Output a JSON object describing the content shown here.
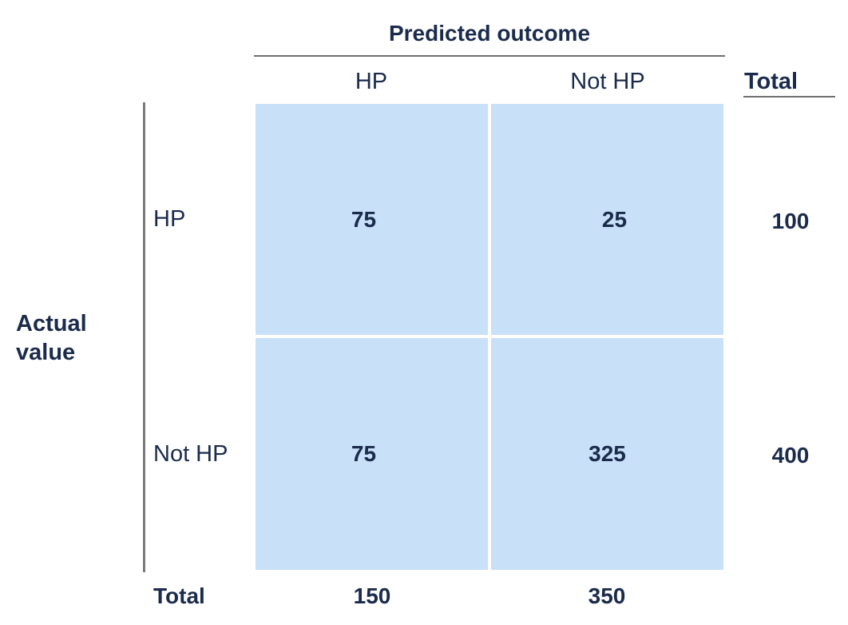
{
  "predicted_header": "Predicted outcome",
  "actual_header_line1": "Actual",
  "actual_header_line2": "value",
  "columns": [
    "HP",
    "Not HP"
  ],
  "rows": [
    "HP",
    "Not HP"
  ],
  "total_label": "Total",
  "cells": [
    [
      "75",
      "25"
    ],
    [
      "75",
      "325"
    ]
  ],
  "row_totals": [
    "100",
    "400"
  ],
  "col_totals": [
    "150",
    "350"
  ],
  "colors": {
    "cell_fill": "#c8e0f8",
    "text": "#1a2b4c",
    "rule": "#6f6f6f"
  }
}
